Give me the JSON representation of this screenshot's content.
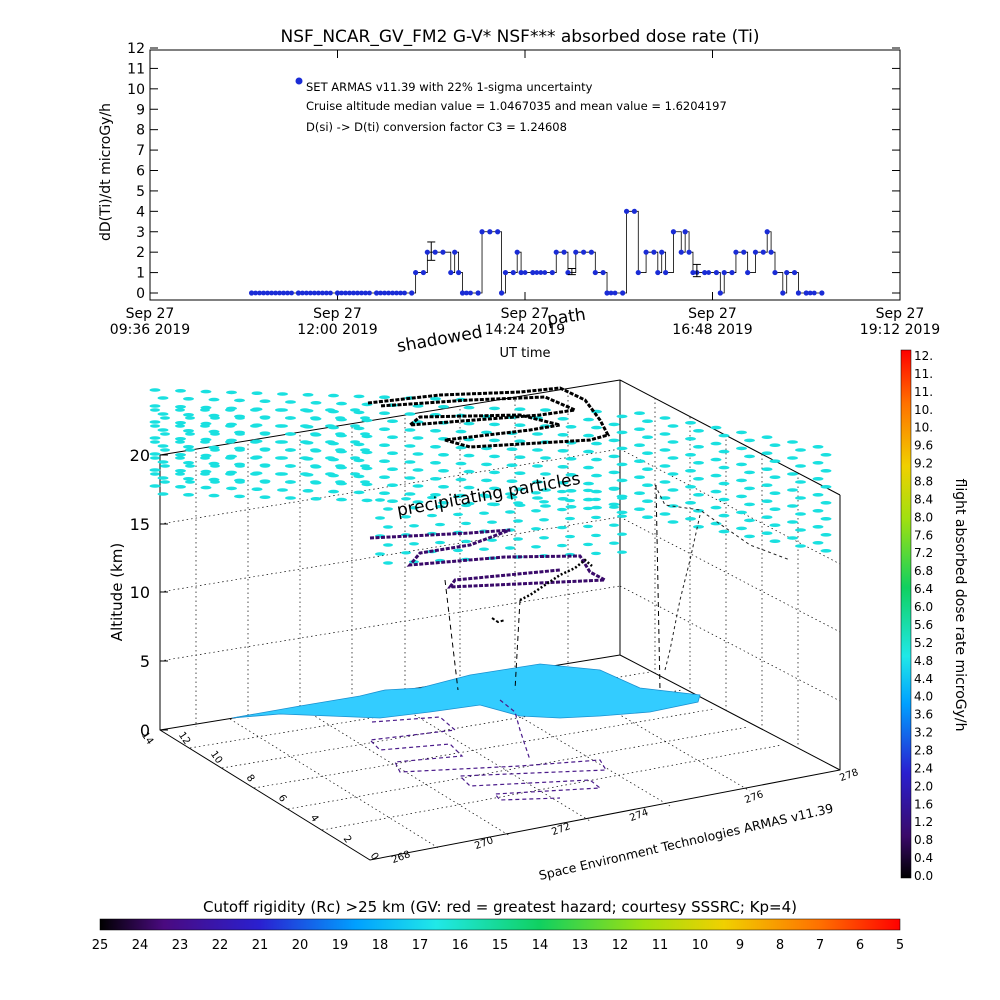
{
  "top_chart": {
    "title": "NSF_NCAR_GV_FM2 G-V* NSF*** absorbed dose rate (Ti)",
    "ylabel": "dD(Ti)/dt microGy/h",
    "xlabel": "UT time",
    "y_ticks": [
      "0",
      "1",
      "2",
      "3",
      "4",
      "5",
      "6",
      "7",
      "8",
      "9",
      "10",
      "11",
      "12"
    ],
    "x_ticks": [
      {
        "line1": "Sep 27",
        "line2": "09:36 2019"
      },
      {
        "line1": "Sep 27",
        "line2": "12:00 2019"
      },
      {
        "line1": "Sep 27",
        "line2": "14:24 2019"
      },
      {
        "line1": "Sep 27",
        "line2": "16:48 2019"
      },
      {
        "line1": "Sep 27",
        "line2": "19:12 2019"
      }
    ],
    "legend_symbol_color": "#1a2cd6",
    "legend_lines": [
      "SET ARMAS v11.39 with 22% 1-sigma uncertainty",
      "Cruise altitude median value = 1.0467035 and mean value = 1.6204197",
      "D(si) -> D(ti) conversion factor C3 = 1.24608"
    ]
  },
  "chart_data": {
    "type": "line",
    "title": "NSF_NCAR_GV_FM2 G-V* NSF*** absorbed dose rate (Ti)",
    "xlabel": "UT time",
    "ylabel": "dD(Ti)/dt microGy/h",
    "x_unit": "hours UT on Sep 27 2019",
    "xlim": [
      9.6,
      19.2
    ],
    "ylim": [
      0,
      12
    ],
    "series": [
      {
        "name": "SET ARMAS v11.39 with 22% 1-sigma uncertainty",
        "color": "#1a2cd6",
        "points": [
          [
            10.9,
            0
          ],
          [
            11.5,
            0
          ],
          [
            12.0,
            0
          ],
          [
            12.5,
            0
          ],
          [
            12.95,
            0
          ],
          [
            13.0,
            1
          ],
          [
            13.1,
            1
          ],
          [
            13.15,
            2
          ],
          [
            13.25,
            2
          ],
          [
            13.35,
            2
          ],
          [
            13.45,
            1
          ],
          [
            13.5,
            2
          ],
          [
            13.55,
            1
          ],
          [
            13.6,
            0
          ],
          [
            13.8,
            0
          ],
          [
            13.85,
            3
          ],
          [
            13.95,
            3
          ],
          [
            14.05,
            3
          ],
          [
            14.1,
            0
          ],
          [
            14.15,
            1
          ],
          [
            14.25,
            1
          ],
          [
            14.3,
            2
          ],
          [
            14.35,
            1
          ],
          [
            14.5,
            1
          ],
          [
            14.75,
            1
          ],
          [
            14.8,
            2
          ],
          [
            14.9,
            2
          ],
          [
            14.95,
            1
          ],
          [
            15.05,
            2
          ],
          [
            15.15,
            2
          ],
          [
            15.25,
            2
          ],
          [
            15.3,
            1
          ],
          [
            15.4,
            1
          ],
          [
            15.45,
            0
          ],
          [
            15.65,
            0
          ],
          [
            15.7,
            4
          ],
          [
            15.8,
            4
          ],
          [
            15.85,
            1
          ],
          [
            15.95,
            2
          ],
          [
            16.05,
            2
          ],
          [
            16.1,
            1
          ],
          [
            16.15,
            2
          ],
          [
            16.2,
            1
          ],
          [
            16.3,
            3
          ],
          [
            16.4,
            2
          ],
          [
            16.45,
            3
          ],
          [
            16.5,
            2
          ],
          [
            16.55,
            1
          ],
          [
            16.7,
            1
          ],
          [
            16.85,
            1
          ],
          [
            16.9,
            0
          ],
          [
            16.95,
            1
          ],
          [
            17.05,
            1
          ],
          [
            17.1,
            2
          ],
          [
            17.2,
            2
          ],
          [
            17.25,
            1
          ],
          [
            17.35,
            2
          ],
          [
            17.45,
            2
          ],
          [
            17.5,
            3
          ],
          [
            17.55,
            2
          ],
          [
            17.6,
            1
          ],
          [
            17.7,
            0
          ],
          [
            17.75,
            1
          ],
          [
            17.85,
            1
          ],
          [
            17.9,
            0
          ],
          [
            18.0,
            0
          ],
          [
            18.2,
            0
          ]
        ]
      }
    ],
    "error_bars": [
      {
        "x": 13.2,
        "y": 2,
        "low": 1.6,
        "high": 2.5
      },
      {
        "x": 15.0,
        "y": 1,
        "low": 0.9,
        "high": 1.2
      },
      {
        "x": 16.6,
        "y": 1,
        "low": 0.8,
        "high": 1.4
      }
    ]
  },
  "scene3d": {
    "z_label": "Altitude (km)",
    "z_ticks": [
      "0",
      "5",
      "10",
      "15",
      "20"
    ],
    "lat_ticks": [
      "0",
      "2",
      "4",
      "6",
      "8",
      "10",
      "12",
      "14"
    ],
    "lon_ticks": [
      "268",
      "270",
      "272",
      "274",
      "276",
      "278"
    ],
    "annotations": {
      "shadowed": "shadowed",
      "path": "path",
      "precipitating": "precipitating particles"
    },
    "credit": "Space Environment Technologies ARMAS v11.39",
    "cyan_color": "#19e0e0",
    "land_color": "#33ccff"
  },
  "colorbar_right": {
    "label": "flight absorbed dose rate microGy/h",
    "ticks": [
      "12.",
      "11.",
      "11.",
      "10.",
      "10.",
      "9.6",
      "9.2",
      "8.8",
      "8.4",
      "8.0",
      "7.6",
      "7.2",
      "6.8",
      "6.4",
      "6.0",
      "5.6",
      "5.2",
      "4.8",
      "4.4",
      "4.0",
      "3.6",
      "3.2",
      "2.8",
      "2.4",
      "2.0",
      "1.6",
      "1.2",
      "0.8",
      "0.4",
      "0.0"
    ]
  },
  "colorbar_bottom": {
    "label": "Cutoff rigidity (Rc) >25 km (GV: red = greatest hazard; courtesy SSSRC; Kp=4)",
    "ticks": [
      "25",
      "24",
      "23",
      "22",
      "21",
      "20",
      "19",
      "18",
      "17",
      "16",
      "15",
      "14",
      "13",
      "12",
      "11",
      "10",
      "9",
      "8",
      "7",
      "6",
      "5"
    ]
  }
}
